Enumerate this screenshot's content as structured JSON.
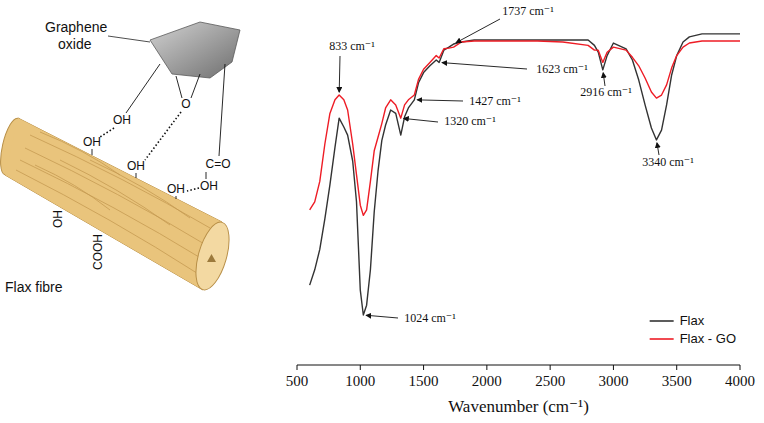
{
  "chart_data": {
    "type": "line",
    "xlabel": "Wavenumber (cm⁻¹)",
    "x": [
      600,
      640,
      680,
      720,
      760,
      800,
      833,
      870,
      900,
      940,
      970,
      1000,
      1024,
      1050,
      1080,
      1110,
      1140,
      1170,
      1200,
      1240,
      1280,
      1320,
      1350,
      1380,
      1427,
      1460,
      1500,
      1550,
      1600,
      1623,
      1660,
      1700,
      1737,
      1800,
      1900,
      2000,
      2200,
      2400,
      2600,
      2800,
      2850,
      2880,
      2916,
      2950,
      3000,
      3100,
      3150,
      3200,
      3250,
      3300,
      3340,
      3380,
      3420,
      3460,
      3500,
      3550,
      3600,
      3700,
      3800,
      4000
    ],
    "xlim": [
      500,
      4000
    ],
    "xticks": [
      500,
      1000,
      1500,
      2000,
      2500,
      3000,
      3500,
      4000
    ],
    "ylim": [
      0,
      100
    ],
    "tick_labels": "x",
    "legend": "lower right",
    "series": [
      {
        "name": "Flax",
        "color": "#333333",
        "values": [
          23.5,
          28,
          34,
          43,
          53,
          64,
          72.6,
          70,
          67.6,
          60,
          48,
          22,
          14.7,
          17.6,
          28,
          45,
          57,
          66,
          70.6,
          75,
          74,
          67.6,
          73,
          75.6,
          78,
          83,
          86,
          88,
          89.7,
          89,
          92.6,
          93.5,
          94.4,
          95,
          95.6,
          95.6,
          95.6,
          95.6,
          95.6,
          95.6,
          94,
          92,
          86.8,
          91,
          94.7,
          93,
          89.7,
          83.8,
          76.5,
          69.7,
          66.2,
          69.1,
          76.5,
          85.3,
          91,
          95,
          96.5,
          97.4,
          97.4,
          97.4
        ]
      },
      {
        "name": "Flax - GO",
        "color": "#ee1c25",
        "values": [
          45.6,
          48,
          54,
          65,
          74,
          78,
          79.4,
          78,
          75,
          65,
          56,
          47,
          44,
          45.6,
          54,
          63,
          67,
          71,
          75.6,
          78,
          76.5,
          72.6,
          76.5,
          78,
          79.4,
          84,
          87,
          89,
          91,
          90.3,
          93,
          93.2,
          93.5,
          95,
          95.3,
          95.3,
          95.3,
          95.3,
          95,
          94,
          92.6,
          92.6,
          89,
          92,
          93.5,
          92.6,
          90.5,
          88,
          84.4,
          80.3,
          78.5,
          79.4,
          82.4,
          87.4,
          91,
          93.5,
          94.7,
          95.3,
          95.3,
          95.3
        ]
      }
    ],
    "annotations": [
      {
        "text": "833 cm⁻¹",
        "x": 833
      },
      {
        "text": "1737 cm⁻¹",
        "x": 1737
      },
      {
        "text": "1623 cm⁻¹",
        "x": 1623
      },
      {
        "text": "1427 cm⁻¹",
        "x": 1427
      },
      {
        "text": "1320 cm⁻¹",
        "x": 1320
      },
      {
        "text": "1024 cm⁻¹",
        "x": 1024
      },
      {
        "text": "2916 cm⁻¹",
        "x": 2916
      },
      {
        "text": "3340 cm⁻¹",
        "x": 3340
      }
    ]
  },
  "illustration": {
    "graphene_label": "Graphene oxide",
    "fibre_label": "Flax fibre",
    "groups": [
      "OH",
      "O",
      "C=O",
      "OH",
      "OH",
      "OH",
      "OH",
      "OH",
      "COOH"
    ]
  }
}
